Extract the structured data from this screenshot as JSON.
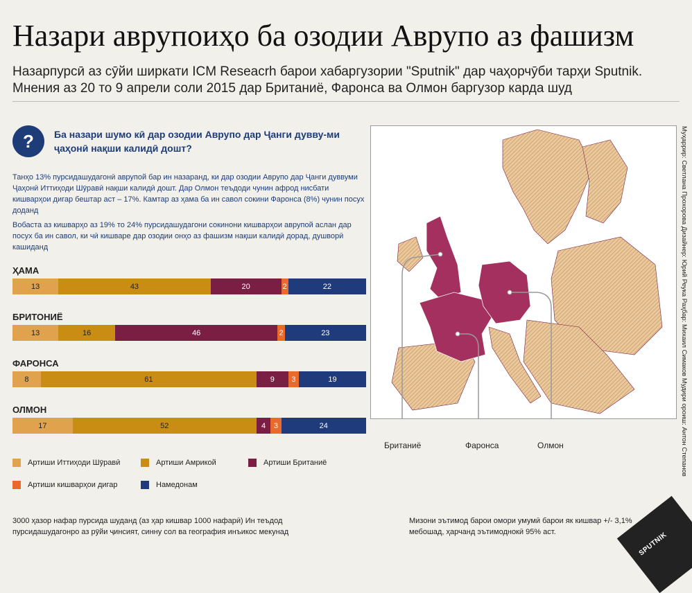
{
  "title": "Назари аврупоиҳо ба озодии Аврупо аз фашизм",
  "subtitle": "Назарпурсӣ аз сӯйи ширкати ICM Reseacrh барои хабаргузории \"Sputnik\" дар чаҳорчӯби тарҳи Sputnik. Мнения аз 20 то 9 апрели соли 2015 дар Британиё, Фаронса ва Олмон баргузор карда шуд",
  "question_icon": "?",
  "question": "Ба назари шумо кӣ дар озодии Аврупо дар Ҷанги дувву-ми ҷаҳонӣ нақши калидӣ дошт?",
  "paragraph1": "Танҳо 13% пурсидашудагонӣ аврупой бар ин назаранд, ки дар озодии Аврупо дар Ҷанги дуввуми Ҷаҳонӣ Иттиҳоди Шӯравӣ нақши калидӣ дошт. Дар Олмон теъдоди чунин афрод нисбати кишварҳои дигар бештар аст – 17%. Камтар аз ҳама ба ин савол сокини Фаронса (8%) чунин посух доданд",
  "paragraph2": "Вобаста аз кишварҳо аз 19% то 24% пурсидашудагони сокинони кишварҳои аврупой аслан дар посух ба ин савол, ки чӣ кишваре дар озодии онҳо аз фашизм нақши калидӣ дорад, душворӣ кашиданд",
  "colors": {
    "ussr": "#e0a24c",
    "usa": "#c98d13",
    "uk": "#7a1f43",
    "other": "#ea6a2c",
    "dontknow": "#1f3b7c",
    "map_highlight": "#a3305f",
    "map_other": "#d4a36a"
  },
  "chart_data": {
    "type": "bar",
    "orientation": "horizontal-stacked-100",
    "categories": [
      "ҲАМА",
      "БРИТОНИЁ",
      "ФАРОНСА",
      "ОЛМОН"
    ],
    "series": [
      {
        "name": "Артиши Иттиҳоди Шӯравӣ",
        "values": [
          13,
          13,
          8,
          17
        ]
      },
      {
        "name": "Артиши Амрикой",
        "values": [
          43,
          16,
          61,
          52
        ]
      },
      {
        "name": "Артиши Британиё",
        "values": [
          20,
          46,
          9,
          4
        ]
      },
      {
        "name": "Артиши кишварҳои дигар",
        "values": [
          2,
          2,
          3,
          3
        ]
      },
      {
        "name": "Намедонам",
        "values": [
          22,
          23,
          19,
          24
        ]
      }
    ],
    "legend_position": "bottom"
  },
  "legend": [
    {
      "label": "Артиши Иттиҳоди Шӯравӣ",
      "key": "ussr"
    },
    {
      "label": "Артиши Амрикой",
      "key": "usa"
    },
    {
      "label": "Артиши Британиё",
      "key": "uk"
    },
    {
      "label": "Артиши кишварҳои дигар",
      "key": "other"
    },
    {
      "label": "Намедонам",
      "key": "dontknow"
    }
  ],
  "footnote_left": "3000 ҳазор нафар пурсида шуданд (аз ҳар кишвар 1000 нафарӣ) Ин теъдод пурсидашудагонро аз рӯйи ҷинсият, синну сол ва география инъикос мекунад",
  "footnote_right": "Мизони эътимод барои омори умумӣ барои як кишвар +/- 3,1% мебошад, ҳарчанд эътимоднокӣ 95% аст.",
  "map_labels": {
    "uk": "Британиё",
    "france": "Фаронса",
    "germany": "Олмон"
  },
  "credits": "Муҳаррир: Светлана Прохорова Дизайнер: Юрий Реука Раҳбар: Михаил Симаков Мудири ороиш: Антон Степанов",
  "logo": "SPUTNIK"
}
